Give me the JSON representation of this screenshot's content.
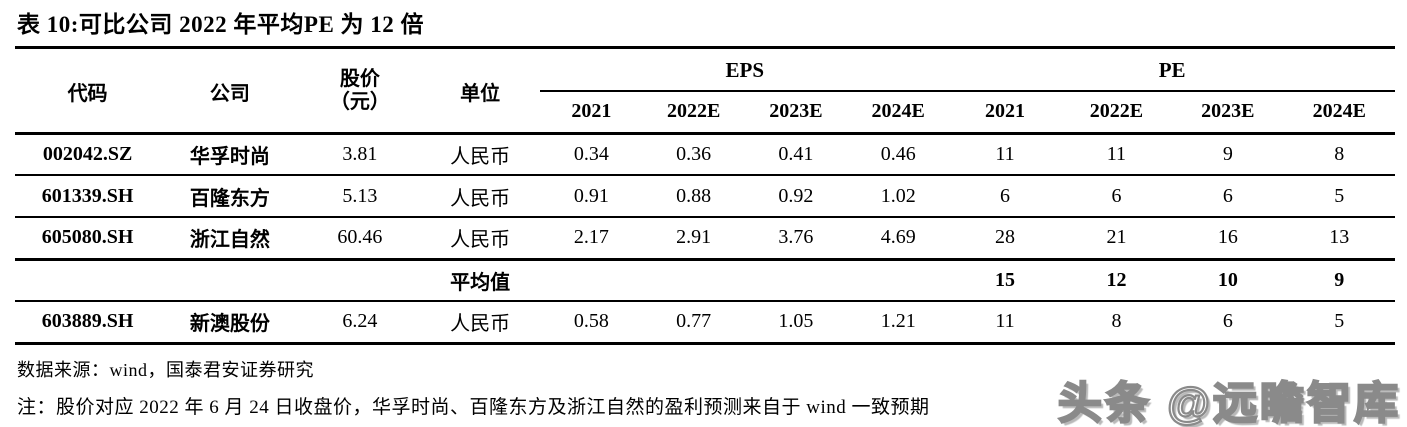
{
  "title": "表 10:可比公司 2022 年平均PE 为 12 倍",
  "colors": {
    "text": "#000000",
    "rule": "#000000",
    "watermark_gray": "#8a8a8a",
    "background": "#ffffff"
  },
  "table": {
    "headers": {
      "code": "代码",
      "company": "公司",
      "price_line1": "股价",
      "price_line2": "（元）",
      "unit": "单位",
      "eps_group": "EPS",
      "pe_group": "PE",
      "eps_years": [
        "2021",
        "2022E",
        "2023E",
        "2024E"
      ],
      "pe_years": [
        "2021",
        "2022E",
        "2023E",
        "2024E"
      ]
    },
    "rows": [
      {
        "code": "002042.SZ",
        "company": "华孚时尚",
        "price": "3.81",
        "unit": "人民币",
        "eps": [
          "0.34",
          "0.36",
          "0.41",
          "0.46"
        ],
        "pe": [
          "11",
          "11",
          "9",
          "8"
        ]
      },
      {
        "code": "601339.SH",
        "company": "百隆东方",
        "price": "5.13",
        "unit": "人民币",
        "eps": [
          "0.91",
          "0.88",
          "0.92",
          "1.02"
        ],
        "pe": [
          "6",
          "6",
          "6",
          "5"
        ]
      },
      {
        "code": "605080.SH",
        "company": "浙江自然",
        "price": "60.46",
        "unit": "人民币",
        "eps": [
          "2.17",
          "2.91",
          "3.76",
          "4.69"
        ],
        "pe": [
          "28",
          "21",
          "16",
          "13"
        ]
      },
      {
        "code": "",
        "company": "",
        "price": "",
        "unit": "平均值",
        "eps": [
          "",
          "",
          "",
          ""
        ],
        "pe": [
          "15",
          "12",
          "10",
          "9"
        ]
      },
      {
        "code": "603889.SH",
        "company": "新澳股份",
        "price": "6.24",
        "unit": "人民币",
        "eps": [
          "0.58",
          "0.77",
          "1.05",
          "1.21"
        ],
        "pe": [
          "11",
          "8",
          "6",
          "5"
        ]
      }
    ]
  },
  "footer": {
    "source": "数据来源：wind，国泰君安证券研究",
    "note": "注：股价对应 2022 年 6 月 24 日收盘价，华孚时尚、百隆东方及浙江自然的盈利预测来自于 wind 一致预期"
  },
  "watermark": "头条 @远瞻智库"
}
